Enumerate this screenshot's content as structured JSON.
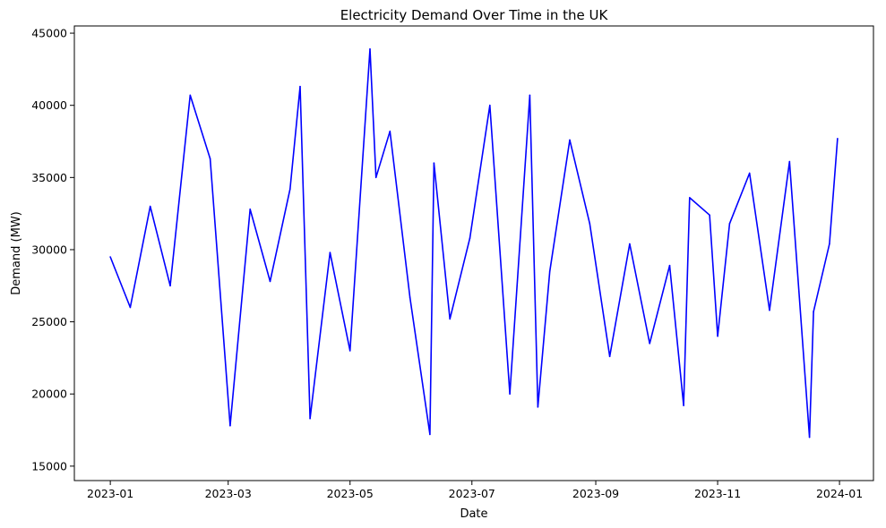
{
  "chart_data": {
    "type": "line",
    "title": "Electricity Demand Over Time in the UK",
    "xlabel": "Date",
    "ylabel": "Demand (MW)",
    "xlim": [
      "2022-12-14",
      "2024-01-18"
    ],
    "ylim": [
      14000,
      45500
    ],
    "grid": false,
    "x_ticks": [
      {
        "date": "2023-01-01",
        "label": "2023-01"
      },
      {
        "date": "2023-03-01",
        "label": "2023-03"
      },
      {
        "date": "2023-05-01",
        "label": "2023-05"
      },
      {
        "date": "2023-07-01",
        "label": "2023-07"
      },
      {
        "date": "2023-09-01",
        "label": "2023-09"
      },
      {
        "date": "2023-11-01",
        "label": "2023-11"
      },
      {
        "date": "2024-01-01",
        "label": "2024-01"
      }
    ],
    "y_ticks": [
      15000,
      20000,
      25000,
      30000,
      35000,
      40000,
      45000
    ],
    "series": [
      {
        "color": "#0000ff",
        "x": [
          "2023-01-01",
          "2023-01-11",
          "2023-01-21",
          "2023-01-31",
          "2023-02-10",
          "2023-02-20",
          "2023-03-02",
          "2023-03-12",
          "2023-03-22",
          "2023-04-01",
          "2023-04-06",
          "2023-04-11",
          "2023-04-21",
          "2023-05-01",
          "2023-05-11",
          "2023-05-14",
          "2023-05-21",
          "2023-05-31",
          "2023-06-10",
          "2023-06-12",
          "2023-06-20",
          "2023-06-30",
          "2023-07-10",
          "2023-07-20",
          "2023-07-30",
          "2023-08-03",
          "2023-08-09",
          "2023-08-19",
          "2023-08-29",
          "2023-09-08",
          "2023-09-18",
          "2023-09-28",
          "2023-10-08",
          "2023-10-15",
          "2023-10-18",
          "2023-10-28",
          "2023-11-01",
          "2023-11-07",
          "2023-11-17",
          "2023-11-27",
          "2023-12-07",
          "2023-12-17",
          "2023-12-19",
          "2023-12-27",
          "2023-12-31"
        ],
        "values": [
          29500,
          26000,
          33000,
          27500,
          40700,
          36300,
          17800,
          32800,
          27800,
          34200,
          41300,
          18300,
          29800,
          23000,
          43900,
          35000,
          38200,
          26700,
          17200,
          36000,
          25200,
          30800,
          40000,
          20000,
          40700,
          19100,
          28500,
          37600,
          31800,
          22600,
          30400,
          23500,
          28900,
          19200,
          33600,
          32400,
          24000,
          31800,
          35300,
          25800,
          36100,
          17000,
          25700,
          30400,
          37700
        ]
      }
    ]
  }
}
